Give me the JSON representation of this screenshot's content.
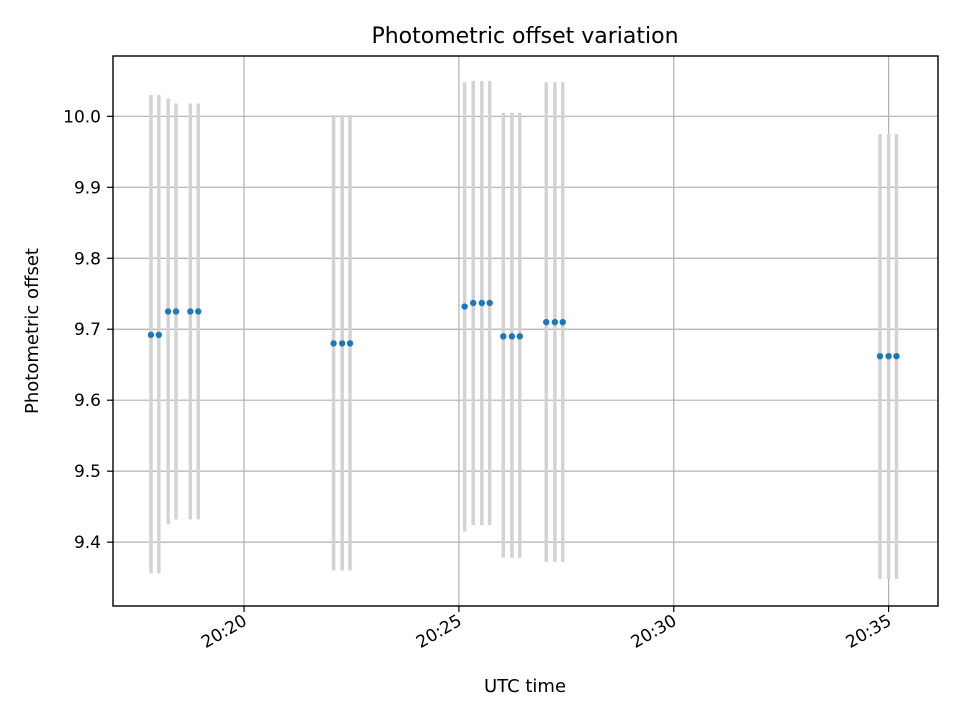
{
  "chart_data": {
    "type": "scatter",
    "title": "Photometric offset variation",
    "xlabel": "UTC time",
    "ylabel": "Photometric offset",
    "x_axis_type": "time",
    "xlim": [
      "20:16:57",
      "20:36:09"
    ],
    "ylim": [
      9.31,
      10.085
    ],
    "x_ticks": [
      "20:20",
      "20:25",
      "20:30",
      "20:35"
    ],
    "y_ticks": [
      9.4,
      9.5,
      9.6,
      9.7,
      9.8,
      9.9,
      10.0
    ],
    "grid": true,
    "colors": {
      "point": "#1f77b4",
      "errorbar": "#d3d3d3"
    },
    "points": [
      {
        "x": "20:17:50",
        "y": 9.692,
        "yerr_low": 9.356,
        "yerr_high": 10.03
      },
      {
        "x": "20:18:01",
        "y": 9.692,
        "yerr_low": 9.356,
        "yerr_high": 10.03
      },
      {
        "x": "20:18:14",
        "y": 9.725,
        "yerr_low": 9.425,
        "yerr_high": 10.025
      },
      {
        "x": "20:18:25",
        "y": 9.725,
        "yerr_low": 9.432,
        "yerr_high": 10.018
      },
      {
        "x": "20:18:45",
        "y": 9.725,
        "yerr_low": 9.432,
        "yerr_high": 10.018
      },
      {
        "x": "20:18:56",
        "y": 9.725,
        "yerr_low": 9.432,
        "yerr_high": 10.018
      },
      {
        "x": "20:22:05",
        "y": 9.68,
        "yerr_low": 9.36,
        "yerr_high": 10.002
      },
      {
        "x": "20:22:17",
        "y": 9.68,
        "yerr_low": 9.36,
        "yerr_high": 10.002
      },
      {
        "x": "20:22:28",
        "y": 9.68,
        "yerr_low": 9.36,
        "yerr_high": 10.002
      },
      {
        "x": "20:25:08",
        "y": 9.732,
        "yerr_low": 9.415,
        "yerr_high": 10.048
      },
      {
        "x": "20:25:20",
        "y": 9.737,
        "yerr_low": 9.424,
        "yerr_high": 10.05
      },
      {
        "x": "20:25:32",
        "y": 9.737,
        "yerr_low": 9.424,
        "yerr_high": 10.05
      },
      {
        "x": "20:25:43",
        "y": 9.737,
        "yerr_low": 9.424,
        "yerr_high": 10.05
      },
      {
        "x": "20:26:02",
        "y": 9.69,
        "yerr_low": 9.378,
        "yerr_high": 10.005
      },
      {
        "x": "20:26:14",
        "y": 9.69,
        "yerr_low": 9.378,
        "yerr_high": 10.005
      },
      {
        "x": "20:26:25",
        "y": 9.69,
        "yerr_low": 9.378,
        "yerr_high": 10.005
      },
      {
        "x": "20:27:02",
        "y": 9.71,
        "yerr_low": 9.372,
        "yerr_high": 10.048
      },
      {
        "x": "20:27:14",
        "y": 9.71,
        "yerr_low": 9.372,
        "yerr_high": 10.048
      },
      {
        "x": "20:27:25",
        "y": 9.71,
        "yerr_low": 9.372,
        "yerr_high": 10.048
      },
      {
        "x": "20:34:48",
        "y": 9.662,
        "yerr_low": 9.348,
        "yerr_high": 9.975
      },
      {
        "x": "20:35:00",
        "y": 9.662,
        "yerr_low": 9.348,
        "yerr_high": 9.975
      },
      {
        "x": "20:35:11",
        "y": 9.662,
        "yerr_low": 9.348,
        "yerr_high": 9.975
      }
    ]
  }
}
